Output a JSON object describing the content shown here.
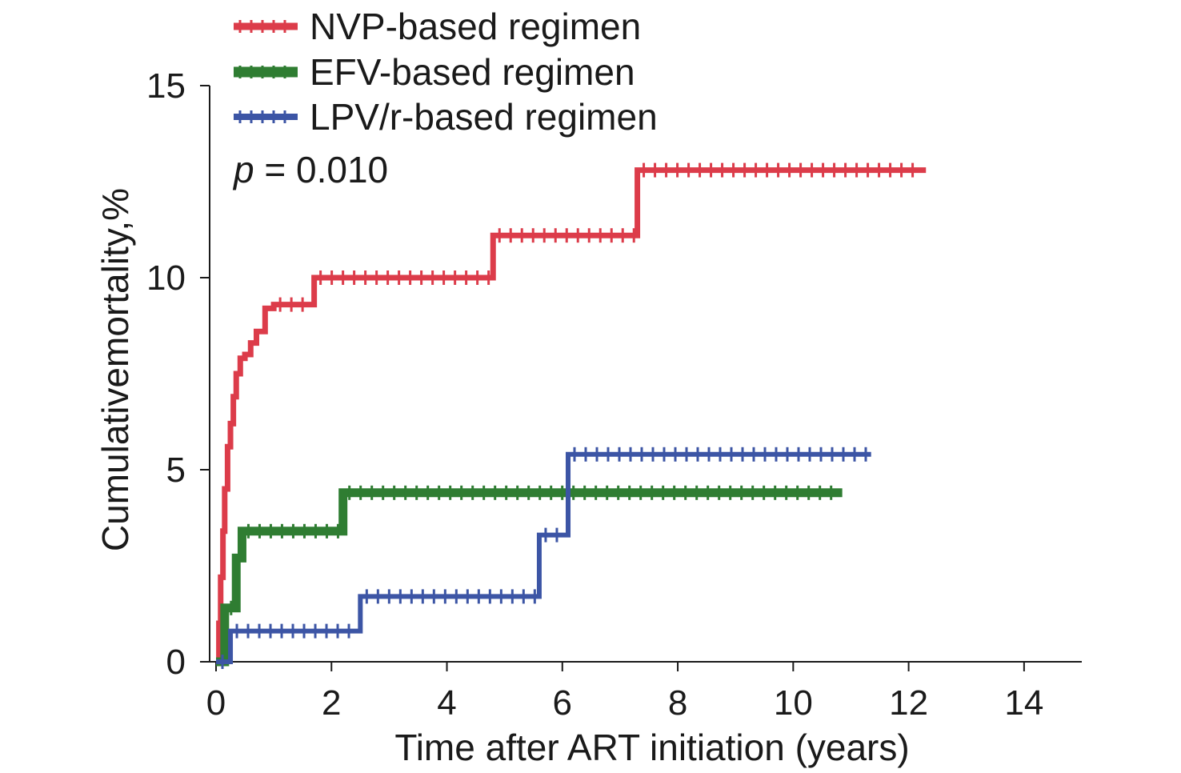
{
  "chart_data": {
    "type": "line",
    "step": true,
    "xlabel": "Time after ART initiation (years)",
    "ylabel": "Cumulativemortality,%",
    "xlim": [
      0,
      15
    ],
    "ylim": [
      0,
      15
    ],
    "xticks": [
      0,
      2,
      4,
      6,
      8,
      10,
      12,
      14
    ],
    "yticks": [
      0,
      5,
      10,
      15
    ],
    "legend_position": "top-left",
    "annotation": {
      "p_symbol": "p",
      "p_text": " = 0.010"
    },
    "series": [
      {
        "name": "NVP-based regimen",
        "color": "#dc3c4a",
        "x": [
          0,
          0.05,
          0.08,
          0.12,
          0.15,
          0.2,
          0.25,
          0.3,
          0.35,
          0.42,
          0.5,
          0.6,
          0.7,
          0.85,
          1.0,
          1.7,
          4.8,
          7.3,
          12.3
        ],
        "y": [
          0,
          1.0,
          2.2,
          3.4,
          4.5,
          5.6,
          6.2,
          6.9,
          7.5,
          7.9,
          8.0,
          8.3,
          8.6,
          9.2,
          9.3,
          10.0,
          11.1,
          12.8,
          12.8
        ]
      },
      {
        "name": "EFV-based regimen",
        "color": "#2f7d32",
        "x": [
          0,
          0.15,
          0.35,
          0.45,
          2.2,
          10.85
        ],
        "y": [
          0,
          1.4,
          2.7,
          3.4,
          4.4,
          4.4
        ]
      },
      {
        "name": "LPV/r-based regimen",
        "color": "#3c55a5",
        "x": [
          0,
          0.25,
          2.5,
          5.6,
          6.1,
          11.35
        ],
        "y": [
          0,
          0.8,
          1.7,
          3.3,
          5.4,
          5.4
        ]
      }
    ]
  }
}
